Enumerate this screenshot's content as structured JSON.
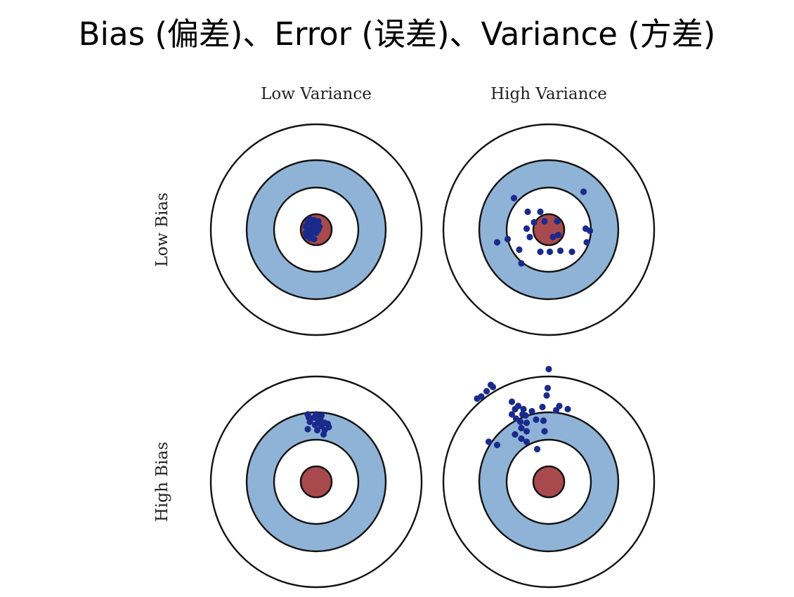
{
  "title": "Bias (偏差)、Error (误差)、Variance (方差)",
  "columns": [
    "Low Variance",
    "High Variance"
  ],
  "rows": [
    "Low Bias",
    "High Bias"
  ],
  "colors": {
    "outer_ring": "#ffffff",
    "middle_ring": "#8fb3d6",
    "inner_ring": "#ffffff",
    "bullseye": "#a84a4d",
    "ring_stroke": "#111111",
    "point": "#1a2a8c"
  },
  "panels": [
    {
      "row": "Low Bias",
      "column": "Low Variance",
      "points": [
        [
          -0.08,
          0.07
        ],
        [
          -0.06,
          0.1
        ],
        [
          -0.02,
          0.09
        ],
        [
          0.02,
          0.08
        ],
        [
          -0.1,
          0.03
        ],
        [
          -0.04,
          0.04
        ],
        [
          0.0,
          0.05
        ],
        [
          0.03,
          0.03
        ],
        [
          -0.08,
          0.0
        ],
        [
          -0.03,
          0.0
        ],
        [
          0.02,
          0.0
        ],
        [
          -0.1,
          -0.03
        ],
        [
          -0.05,
          -0.04
        ],
        [
          0.0,
          -0.03
        ],
        [
          -0.06,
          -0.08
        ],
        [
          -0.02,
          -0.09
        ],
        [
          -0.09,
          -0.06
        ]
      ]
    },
    {
      "row": "Low Bias",
      "column": "High Variance",
      "points": [
        [
          -0.33,
          0.3
        ],
        [
          0.33,
          0.36
        ],
        [
          -0.2,
          0.17
        ],
        [
          -0.08,
          0.17
        ],
        [
          -0.14,
          0.07
        ],
        [
          -0.04,
          0.08
        ],
        [
          -0.21,
          0.01
        ],
        [
          0.08,
          0.08
        ],
        [
          0.35,
          0.01
        ],
        [
          0.39,
          -0.01
        ],
        [
          -0.39,
          -0.09
        ],
        [
          -0.49,
          -0.12
        ],
        [
          -0.18,
          -0.07
        ],
        [
          0.09,
          -0.05
        ],
        [
          0.04,
          -0.07
        ],
        [
          0.36,
          -0.12
        ],
        [
          -0.28,
          -0.19
        ],
        [
          0.01,
          -0.21
        ],
        [
          -0.08,
          -0.21
        ],
        [
          0.11,
          -0.2
        ],
        [
          0.22,
          -0.21
        ],
        [
          -0.26,
          -0.32
        ]
      ]
    },
    {
      "row": "High Bias",
      "column": "Low Variance",
      "points": [
        [
          -0.08,
          0.64
        ],
        [
          0.0,
          0.64
        ],
        [
          0.05,
          0.63
        ],
        [
          -0.07,
          0.61
        ],
        [
          -0.02,
          0.61
        ],
        [
          0.04,
          0.6
        ],
        [
          -0.06,
          0.57
        ],
        [
          0.02,
          0.57
        ],
        [
          0.08,
          0.56
        ],
        [
          0.11,
          0.55
        ],
        [
          -0.01,
          0.54
        ],
        [
          0.05,
          0.53
        ],
        [
          0.12,
          0.52
        ],
        [
          0.01,
          0.49
        ],
        [
          0.08,
          0.49
        ],
        [
          -0.08,
          0.5
        ],
        [
          0.07,
          0.45
        ]
      ]
    },
    {
      "row": "High Bias",
      "column": "High Variance",
      "points": [
        [
          -0.53,
          0.9
        ],
        [
          -0.55,
          0.92
        ],
        [
          -0.59,
          0.86
        ],
        [
          -0.64,
          0.81
        ],
        [
          -0.68,
          0.79
        ],
        [
          0.0,
          1.07
        ],
        [
          -0.01,
          0.89
        ],
        [
          -0.02,
          0.82
        ],
        [
          -0.35,
          0.76
        ],
        [
          -0.29,
          0.72
        ],
        [
          -0.32,
          0.69
        ],
        [
          -0.24,
          0.69
        ],
        [
          -0.25,
          0.64
        ],
        [
          -0.22,
          0.63
        ],
        [
          -0.35,
          0.64
        ],
        [
          0.1,
          0.72
        ],
        [
          0.18,
          0.69
        ],
        [
          0.07,
          0.68
        ],
        [
          -0.06,
          0.71
        ],
        [
          -0.16,
          0.67
        ],
        [
          -0.31,
          0.6
        ],
        [
          -0.27,
          0.57
        ],
        [
          -0.21,
          0.56
        ],
        [
          -0.12,
          0.59
        ],
        [
          -0.05,
          0.58
        ],
        [
          -0.26,
          0.51
        ],
        [
          -0.21,
          0.48
        ],
        [
          -0.04,
          0.48
        ],
        [
          -0.32,
          0.45
        ],
        [
          -0.26,
          0.41
        ],
        [
          -0.21,
          0.38
        ],
        [
          -0.57,
          0.38
        ],
        [
          -0.49,
          0.35
        ],
        [
          -0.11,
          0.31
        ]
      ]
    }
  ]
}
